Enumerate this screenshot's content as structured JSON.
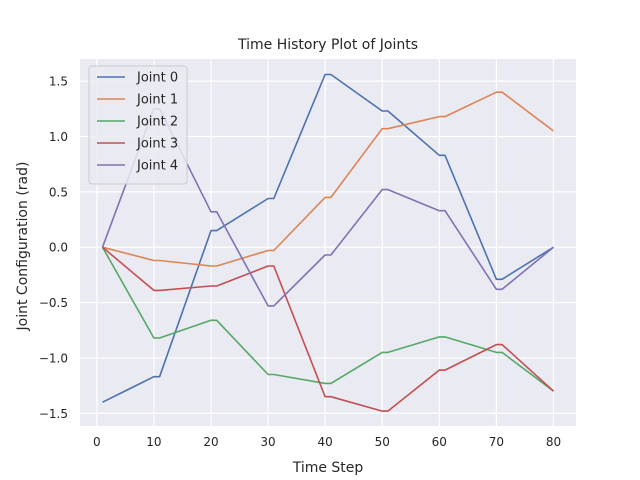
{
  "chart_data": {
    "type": "line",
    "title": "Time History Plot of Joints",
    "xlabel": "Time Step",
    "ylabel": "Joint Configuration (rad)",
    "xlim": [
      -2.95,
      83.95
    ],
    "ylim": [
      -1.615,
      1.7
    ],
    "xticks": [
      0,
      10,
      20,
      30,
      40,
      50,
      60,
      70,
      80
    ],
    "yticks": [
      -1.5,
      -1.0,
      -0.5,
      0.0,
      0.5,
      1.0,
      1.5
    ],
    "ytick_labels": [
      "−1.5",
      "−1.0",
      "−0.5",
      "0.0",
      "0.5",
      "1.0",
      "1.5"
    ],
    "grid": true,
    "legend_position": "top-left",
    "series": [
      {
        "name": "Joint 0",
        "color": "#4c72b0",
        "x": [
          1,
          10,
          11,
          20,
          21,
          30,
          31,
          40,
          41,
          50,
          51,
          60,
          61,
          70,
          71,
          80
        ],
        "y": [
          -1.4,
          -1.17,
          -1.17,
          0.15,
          0.15,
          0.44,
          0.44,
          1.56,
          1.56,
          1.23,
          1.23,
          0.83,
          0.83,
          -0.29,
          -0.29,
          0.0
        ]
      },
      {
        "name": "Joint 1",
        "color": "#dd8452",
        "x": [
          1,
          10,
          11,
          20,
          21,
          30,
          31,
          40,
          41,
          50,
          51,
          60,
          61,
          70,
          71,
          80
        ],
        "y": [
          0.0,
          -0.12,
          -0.12,
          -0.17,
          -0.17,
          -0.03,
          -0.03,
          0.45,
          0.45,
          1.07,
          1.07,
          1.18,
          1.18,
          1.4,
          1.4,
          1.05
        ]
      },
      {
        "name": "Joint 2",
        "color": "#55a868",
        "x": [
          1,
          10,
          11,
          20,
          21,
          30,
          31,
          40,
          41,
          50,
          51,
          60,
          61,
          70,
          71,
          80
        ],
        "y": [
          0.0,
          -0.82,
          -0.82,
          -0.66,
          -0.66,
          -1.15,
          -1.15,
          -1.23,
          -1.23,
          -0.95,
          -0.95,
          -0.81,
          -0.81,
          -0.95,
          -0.95,
          -1.3
        ]
      },
      {
        "name": "Joint 3",
        "color": "#c44e52",
        "x": [
          1,
          10,
          11,
          20,
          21,
          30,
          31,
          40,
          41,
          50,
          51,
          60,
          61,
          70,
          71,
          80
        ],
        "y": [
          0.0,
          -0.39,
          -0.39,
          -0.35,
          -0.35,
          -0.17,
          -0.17,
          -1.35,
          -1.35,
          -1.48,
          -1.48,
          -1.11,
          -1.11,
          -0.88,
          -0.88,
          -1.3
        ]
      },
      {
        "name": "Joint 4",
        "color": "#8172b3",
        "x": [
          1,
          10,
          11,
          20,
          21,
          30,
          31,
          40,
          41,
          50,
          51,
          60,
          61,
          70,
          71,
          80
        ],
        "y": [
          0.0,
          1.25,
          1.25,
          0.32,
          0.32,
          -0.53,
          -0.53,
          -0.07,
          -0.07,
          0.52,
          0.52,
          0.33,
          0.33,
          -0.38,
          -0.38,
          0.0
        ]
      }
    ]
  }
}
